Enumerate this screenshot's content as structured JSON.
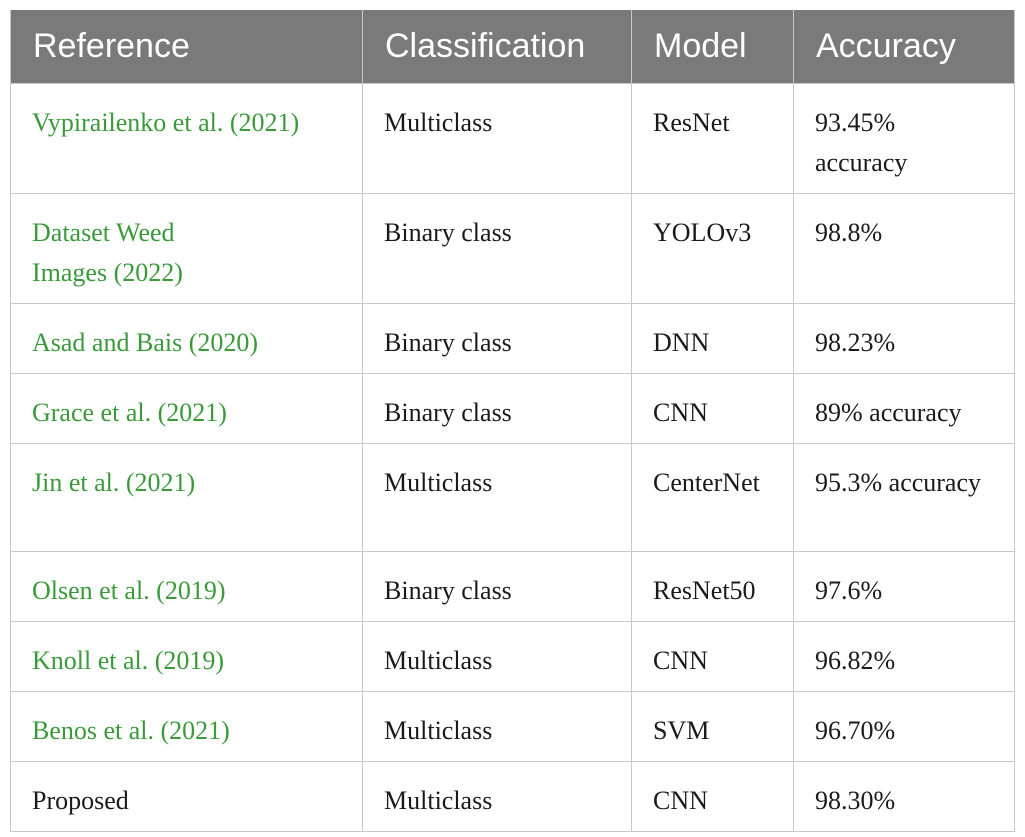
{
  "table": {
    "headers": [
      "Reference",
      "Classification",
      "Model",
      "Accuracy"
    ],
    "rows": [
      {
        "reference": "Vypirailenko et al. (2021)",
        "classification": "Multiclass",
        "model": "ResNet",
        "accuracy": "93.45% accuracy"
      },
      {
        "reference": "Dataset Weed Images (2022)",
        "classification": "Binary class",
        "model": "YOLOv3",
        "accuracy": "98.8%"
      },
      {
        "reference": "Asad and Bais (2020)",
        "classification": "Binary class",
        "model": "DNN",
        "accuracy": "98.23%"
      },
      {
        "reference": "Grace et al. (2021)",
        "classification": "Binary class",
        "model": "CNN",
        "accuracy": "89% accuracy"
      },
      {
        "reference": "Jin et al. (2021)",
        "classification": "Multiclass",
        "model": "CenterNet",
        "accuracy": "95.3% accuracy"
      },
      {
        "reference": "Olsen et al. (2019)",
        "classification": "Binary class",
        "model": "ResNet50",
        "accuracy": "97.6%"
      },
      {
        "reference": "Knoll et al. (2019)",
        "classification": "Multiclass",
        "model": "CNN",
        "accuracy": "96.82%"
      },
      {
        "reference": "Benos et al. (2021)",
        "classification": "Multiclass",
        "model": "SVM",
        "accuracy": "96.70%"
      },
      {
        "reference": "Proposed",
        "classification": "Multiclass",
        "model": "CNN",
        "accuracy": "98.30%"
      }
    ]
  },
  "colors": {
    "header_bg": "#7a7a7a",
    "header_text": "#ffffff",
    "link_text": "#3a9a3a",
    "body_text": "#1a1a1a",
    "grid": "#c9c9c9"
  }
}
